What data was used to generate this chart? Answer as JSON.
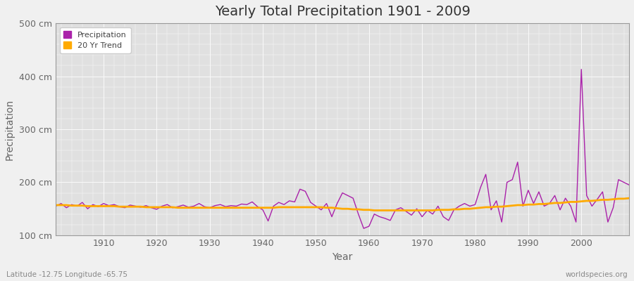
{
  "title": "Yearly Total Precipitation 1901 - 2009",
  "xlabel": "Year",
  "ylabel": "Precipitation",
  "lat_lon_label": "Latitude -12.75 Longitude -65.75",
  "watermark": "worldspecies.org",
  "ylim": [
    100,
    500
  ],
  "yticks": [
    100,
    200,
    300,
    400,
    500
  ],
  "ytick_labels": [
    "100 cm",
    "200 cm",
    "300 cm",
    "400 cm",
    "500 cm"
  ],
  "xlim": [
    1901,
    2009
  ],
  "xticks": [
    1910,
    1920,
    1930,
    1940,
    1950,
    1960,
    1970,
    1980,
    1990,
    2000
  ],
  "precip_color": "#aa22aa",
  "trend_color": "#ffaa00",
  "bg_color": "#f0f0f0",
  "plot_bg_color": "#e0e0e0",
  "grid_color": "#fafafa",
  "legend_label_precip": "Precipitation",
  "legend_label_trend": "20 Yr Trend",
  "years": [
    1901,
    1902,
    1903,
    1904,
    1905,
    1906,
    1907,
    1908,
    1909,
    1910,
    1911,
    1912,
    1913,
    1914,
    1915,
    1916,
    1917,
    1918,
    1919,
    1920,
    1921,
    1922,
    1923,
    1924,
    1925,
    1926,
    1927,
    1928,
    1929,
    1930,
    1931,
    1932,
    1933,
    1934,
    1935,
    1936,
    1937,
    1938,
    1939,
    1940,
    1941,
    1942,
    1943,
    1944,
    1945,
    1946,
    1947,
    1948,
    1949,
    1950,
    1951,
    1952,
    1953,
    1954,
    1955,
    1956,
    1957,
    1958,
    1959,
    1960,
    1961,
    1962,
    1963,
    1964,
    1965,
    1966,
    1967,
    1968,
    1969,
    1970,
    1971,
    1972,
    1973,
    1974,
    1975,
    1976,
    1977,
    1978,
    1979,
    1980,
    1981,
    1982,
    1983,
    1984,
    1985,
    1986,
    1987,
    1988,
    1989,
    1990,
    1991,
    1992,
    1993,
    1994,
    1995,
    1996,
    1997,
    1998,
    1999,
    2000,
    2001,
    2002,
    2003,
    2004,
    2005,
    2006,
    2007,
    2008,
    2009
  ],
  "precip": [
    155,
    160,
    152,
    158,
    155,
    162,
    150,
    158,
    154,
    160,
    156,
    158,
    154,
    152,
    157,
    155,
    153,
    156,
    152,
    149,
    155,
    158,
    152,
    154,
    157,
    153,
    155,
    160,
    154,
    152,
    156,
    158,
    154,
    156,
    155,
    159,
    158,
    163,
    154,
    148,
    127,
    155,
    162,
    158,
    165,
    163,
    187,
    183,
    162,
    155,
    148,
    160,
    135,
    160,
    180,
    175,
    170,
    140,
    113,
    117,
    140,
    135,
    132,
    128,
    148,
    152,
    145,
    138,
    150,
    135,
    147,
    140,
    155,
    135,
    128,
    148,
    155,
    160,
    155,
    158,
    190,
    215,
    148,
    165,
    125,
    200,
    205,
    238,
    155,
    185,
    160,
    182,
    155,
    160,
    175,
    148,
    170,
    155,
    125,
    413,
    175,
    155,
    168,
    182,
    125,
    152,
    205,
    200,
    195
  ],
  "trend": [
    157,
    157,
    157,
    156,
    156,
    156,
    155,
    155,
    155,
    155,
    155,
    155,
    154,
    154,
    154,
    154,
    154,
    153,
    153,
    153,
    153,
    153,
    153,
    152,
    152,
    152,
    152,
    152,
    152,
    152,
    152,
    152,
    152,
    152,
    152,
    152,
    152,
    152,
    152,
    152,
    152,
    152,
    153,
    153,
    153,
    153,
    153,
    153,
    153,
    153,
    153,
    152,
    152,
    151,
    150,
    150,
    149,
    149,
    148,
    148,
    147,
    147,
    147,
    147,
    147,
    147,
    147,
    147,
    147,
    147,
    147,
    147,
    148,
    148,
    148,
    149,
    149,
    150,
    150,
    151,
    152,
    153,
    153,
    154,
    154,
    155,
    156,
    157,
    157,
    158,
    158,
    159,
    159,
    160,
    161,
    161,
    162,
    163,
    163,
    164,
    165,
    165,
    166,
    167,
    167,
    168,
    169,
    169,
    170
  ]
}
